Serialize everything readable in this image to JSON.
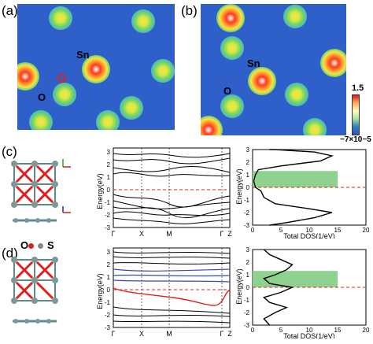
{
  "panels": {
    "a": "(a)",
    "b": "(b)",
    "c": "(c)",
    "d": "(d)"
  },
  "atom_labels": {
    "sn": "Sn",
    "o": "O",
    "s": "S"
  },
  "colorbar": {
    "max": "1.5",
    "min": "−7×10−5"
  },
  "band_plot": {
    "ylabel": "Energy(eV)",
    "xticks": [
      "Γ",
      "X",
      "M",
      "Γ",
      "Z"
    ],
    "yticks": [
      "-3",
      "-2",
      "-1",
      "0",
      "1",
      "2",
      "3"
    ]
  },
  "dos_plot": {
    "xlabel": "Total DOS(1/eV)",
    "ylabel": "Energy(eV)",
    "xticks": [
      "0",
      "5",
      "10",
      "15",
      "20"
    ],
    "yticks": [
      "-3",
      "-2",
      "-1",
      "0",
      "1",
      "2",
      "3"
    ]
  },
  "chart_data": [
    {
      "type": "line",
      "panel": "c-dos",
      "xlabel": "Total DOS(1/eV)",
      "ylabel": "Energy(eV)",
      "xlim": [
        0,
        20
      ],
      "ylim": [
        -3,
        3
      ],
      "fermi_level": 0,
      "gap_region": [
        0,
        1.3
      ],
      "series": [
        {
          "x": [
            3,
            6,
            11,
            14,
            10,
            4,
            2,
            1.5,
            0.5,
            0.2,
            0.5,
            1,
            5,
            12,
            14,
            11,
            4,
            3
          ],
          "y": [
            -3,
            -2.8,
            -2.4,
            -2.0,
            -1.7,
            -1.3,
            -0.8,
            -0.3,
            0,
            0.5,
            1.0,
            1.4,
            1.7,
            2.1,
            2.5,
            2.8,
            3.0,
            3.0
          ]
        }
      ]
    },
    {
      "type": "line",
      "panel": "d-dos",
      "xlabel": "Total DOS(1/eV)",
      "ylabel": "Energy(eV)",
      "xlim": [
        0,
        20
      ],
      "ylim": [
        -3,
        3
      ],
      "fermi_level": 0,
      "gap_region": [
        0,
        1.3
      ],
      "series": [
        {
          "x": [
            3,
            2,
            4,
            6,
            3,
            2,
            5,
            7,
            3,
            2,
            4,
            6,
            7,
            5,
            3,
            2
          ],
          "y": [
            -3,
            -2.5,
            -2.0,
            -1.6,
            -1.2,
            -0.8,
            -0.4,
            0,
            0.3,
            0.7,
            1.0,
            1.4,
            1.8,
            2.2,
            2.6,
            3.0
          ]
        }
      ]
    }
  ]
}
